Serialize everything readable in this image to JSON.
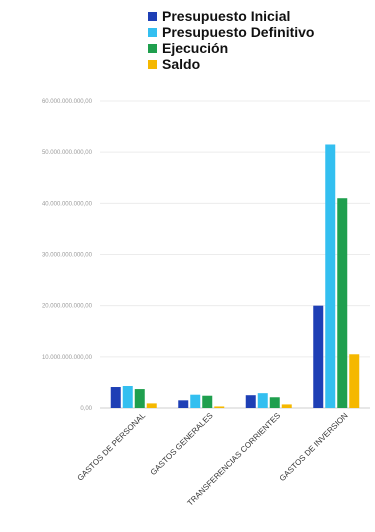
{
  "chart_data": {
    "type": "bar",
    "title": "",
    "xlabel": "",
    "ylabel": "",
    "categories": [
      "GASTOS DE PERSONAL",
      "GASTOS GENERALES",
      "TRANSFERENCIAS CORRIENTES",
      "GASTOS DE INVERSION"
    ],
    "ylim": [
      0,
      60000000000
    ],
    "yticks": [
      0,
      10000000000,
      20000000000,
      30000000000,
      40000000000,
      50000000000,
      60000000000
    ],
    "ytick_labels": [
      "0,00",
      "10.000.000.000,00",
      "20.000.000.000,00",
      "30.000.000.000,00",
      "40.000.000.000,00",
      "50.000.000.000,00",
      "60.000.000.000,00"
    ],
    "grid": true,
    "legend_position": "top",
    "series": [
      {
        "name": "Presupuesto Inicial",
        "color": "#1e3fb5",
        "values": [
          4100000000,
          1500000000,
          2500000000,
          20000000000
        ]
      },
      {
        "name": "Presupuesto Definitivo",
        "color": "#33bff0",
        "values": [
          4300000000,
          2600000000,
          2900000000,
          51500000000
        ]
      },
      {
        "name": "Ejecución",
        "color": "#1f9f4e",
        "values": [
          3700000000,
          2400000000,
          2100000000,
          41000000000
        ]
      },
      {
        "name": "Saldo",
        "color": "#f5b800",
        "values": [
          900000000,
          300000000,
          700000000,
          10500000000
        ]
      }
    ]
  }
}
